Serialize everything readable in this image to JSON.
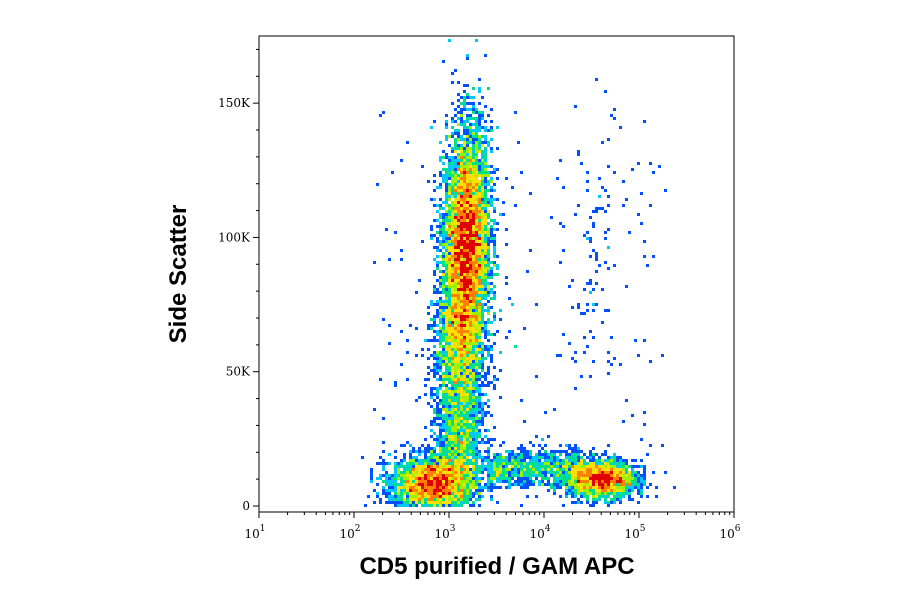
{
  "chart_data": {
    "type": "scatter",
    "xlabel": "CD5 purified / GAM APC",
    "ylabel": "Side Scatter",
    "x_scale": "log",
    "xlim": [
      10,
      1000000
    ],
    "ylim": [
      0,
      175000
    ],
    "x_ticks": [
      {
        "value": 10,
        "base": "10",
        "exp": "1"
      },
      {
        "value": 100,
        "base": "10",
        "exp": "2"
      },
      {
        "value": 1000,
        "base": "10",
        "exp": "3"
      },
      {
        "value": 10000,
        "base": "10",
        "exp": "4"
      },
      {
        "value": 100000,
        "base": "10",
        "exp": "5"
      },
      {
        "value": 1000000,
        "base": "10",
        "exp": "6"
      }
    ],
    "y_ticks": [
      {
        "value": 0,
        "label": "0"
      },
      {
        "value": 50000,
        "label": "50K"
      },
      {
        "value": 100000,
        "label": "100K"
      },
      {
        "value": 150000,
        "label": "150K"
      }
    ],
    "grid": false,
    "colormap": [
      "#0000c8",
      "#0050ff",
      "#00c8ff",
      "#00e08a",
      "#a0f000",
      "#ffe000",
      "#ff8000",
      "#e00000"
    ],
    "populations": [
      {
        "center_x": 1500,
        "center_y": 95000,
        "spread_log_x": 0.12,
        "spread_y": 22000
      },
      {
        "center_x": 700,
        "center_y": 8000,
        "spread_log_x": 0.22,
        "spread_y": 5000
      },
      {
        "center_x": 40000,
        "center_y": 10000,
        "spread_log_x": 0.18,
        "spread_y": 3500
      }
    ]
  }
}
